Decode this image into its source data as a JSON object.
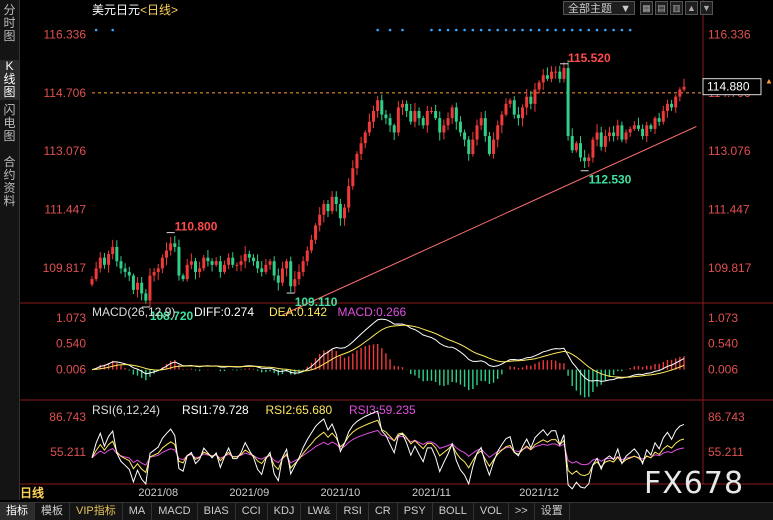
{
  "sidebar": {
    "items": [
      {
        "label": "分时图",
        "active": false
      },
      {
        "label": "K线图",
        "active": true
      },
      {
        "label": "闪电图",
        "active": false
      },
      {
        "label": "合约资料",
        "active": false
      }
    ]
  },
  "header": {
    "symbol": "美元日元",
    "period_tag": "<日线>",
    "theme_select": "全部主题",
    "theme_arrow": "▼"
  },
  "toolbar_icons": [
    "grid-icon",
    "expand-icon",
    "trash-icon",
    "arrow-up-icon",
    "arrow-down-icon"
  ],
  "period_label": "日线",
  "watermark": "FX678",
  "colors": {
    "up": "#f03a3a",
    "down": "#2fcf8a",
    "trendline": "#ff7070",
    "dashline": "#ff9a3c",
    "diff": "#ffffff",
    "dea": "#ffe95c",
    "macd": "#e050e0",
    "rsi1": "#ffffff",
    "rsi2": "#ffe95c",
    "rsi3": "#e050e0",
    "dots": "#3aa7ff"
  },
  "bottom_tabs": [
    "指标",
    "模板",
    "VIP指标",
    "MA",
    "MACD",
    "BIAS",
    "CCI",
    "KDJ",
    "LW&",
    "RSI",
    "CR",
    "PSY",
    "BOLL",
    "VOL",
    ">>",
    "设置"
  ],
  "chart_data": [
    {
      "type": "candlestick",
      "title": "美元日元<日线>",
      "y_ticks": [
        "116.336",
        "114.706",
        "113.076",
        "111.447",
        "109.817"
      ],
      "ylim": [
        109.0,
        116.8
      ],
      "x_ticks": [
        "2021/08",
        "2021/09",
        "2021/10",
        "2021/11",
        "2021/12"
      ],
      "current_price": "114.880",
      "annotations": [
        {
          "label": "115.520",
          "x_index": 114,
          "value": 115.52,
          "kind": "high"
        },
        {
          "label": "112.530",
          "x_index": 119,
          "value": 112.53,
          "kind": "low"
        },
        {
          "label": "110.800",
          "x_index": 19,
          "value": 110.8,
          "kind": "high"
        },
        {
          "label": "108.720",
          "x_index": 13,
          "value": 108.72,
          "kind": "low"
        },
        {
          "label": "109.110",
          "x_index": 48,
          "value": 109.11,
          "kind": "low"
        }
      ],
      "candles_close": [
        109.5,
        109.8,
        110.1,
        109.9,
        110.2,
        110.4,
        110.0,
        109.8,
        109.7,
        109.6,
        109.2,
        109.4,
        109.1,
        108.9,
        109.6,
        109.7,
        109.8,
        110.1,
        110.3,
        110.5,
        110.4,
        109.6,
        109.5,
        109.9,
        110.0,
        109.7,
        109.8,
        110.1,
        110.0,
        109.9,
        110.0,
        109.7,
        109.9,
        110.1,
        109.9,
        109.9,
        110.0,
        110.2,
        110.1,
        110.0,
        109.8,
        109.7,
        109.9,
        110.0,
        109.6,
        109.4,
        109.8,
        110.0,
        109.3,
        109.5,
        109.7,
        110.0,
        110.3,
        110.6,
        111.0,
        111.3,
        111.6,
        111.4,
        111.8,
        111.6,
        111.2,
        111.5,
        112.1,
        112.6,
        113.0,
        113.3,
        113.6,
        113.9,
        114.2,
        114.5,
        114.1,
        114.0,
        113.8,
        113.6,
        114.3,
        114.4,
        114.2,
        113.9,
        114.2,
        114.0,
        113.8,
        114.2,
        114.2,
        114.0,
        113.6,
        113.8,
        114.0,
        114.3,
        113.9,
        113.6,
        113.4,
        113.0,
        113.4,
        113.8,
        114.0,
        113.5,
        113.0,
        113.4,
        113.8,
        114.1,
        114.4,
        114.5,
        114.1,
        114.0,
        114.3,
        114.6,
        114.4,
        114.8,
        115.0,
        115.2,
        115.1,
        115.3,
        115.3,
        115.1,
        115.4,
        113.5,
        113.1,
        113.3,
        112.9,
        112.8,
        112.9,
        113.4,
        113.6,
        113.2,
        113.5,
        113.6,
        113.5,
        113.8,
        113.4,
        113.6,
        113.7,
        113.8,
        113.7,
        113.5,
        113.8,
        113.7,
        114.0,
        113.9,
        114.2,
        114.4,
        114.3,
        114.6,
        114.8,
        114.88
      ],
      "trendline": [
        {
          "x_index": 46,
          "value": 108.5
        },
        {
          "x_index": 158,
          "value": 114.4
        }
      ],
      "dashline_value": 114.706
    },
    {
      "type": "bar+line",
      "title": "MACD(26,12,9)",
      "legend": [
        {
          "label": "DIFF:0.274",
          "color": "#ffffff"
        },
        {
          "label": "DEA:0.142",
          "color": "#ffe95c"
        },
        {
          "label": "MACD:0.266",
          "color": "#e050e0"
        }
      ],
      "y_ticks": [
        "1.073",
        "0.540",
        "0.006"
      ],
      "ylim": [
        -0.55,
        1.2
      ]
    },
    {
      "type": "line",
      "title": "RSI(6,12,24)",
      "legend": [
        {
          "label": "RSI1:79.728",
          "color": "#ffffff"
        },
        {
          "label": "RSI2:65.680",
          "color": "#ffe95c"
        },
        {
          "label": "RSI3:59.235",
          "color": "#e050e0"
        }
      ],
      "y_ticks": [
        "86.743",
        "55.211"
      ],
      "ylim": [
        28,
        95
      ]
    }
  ]
}
